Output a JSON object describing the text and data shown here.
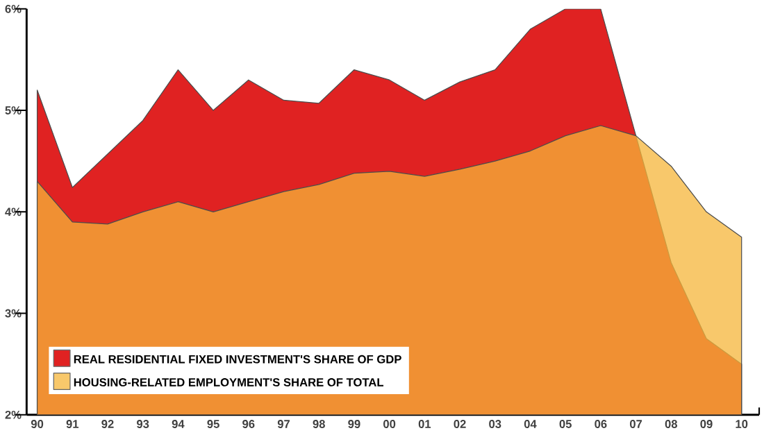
{
  "chart_data": {
    "type": "area",
    "categories": [
      "90",
      "91",
      "92",
      "93",
      "94",
      "95",
      "96",
      "97",
      "98",
      "99",
      "00",
      "01",
      "02",
      "03",
      "04",
      "05",
      "06",
      "07",
      "08",
      "09",
      "10"
    ],
    "series": [
      {
        "name": "REAL RESIDENTIAL FIXED INVESTMENT'S SHARE OF GDP",
        "color": "#e02222",
        "values": [
          5.2,
          4.24,
          4.57,
          4.9,
          5.4,
          5.0,
          5.3,
          5.1,
          5.07,
          5.4,
          5.3,
          5.1,
          5.28,
          5.4,
          5.8,
          6.0,
          6.0,
          4.75,
          3.5,
          2.75,
          2.5
        ]
      },
      {
        "name": "HOUSING-RELATED EMPLOYMENT'S SHARE OF TOTAL",
        "color": "#f5b53a",
        "values": [
          4.3,
          3.9,
          3.88,
          4.0,
          4.1,
          4.0,
          4.1,
          4.2,
          4.27,
          4.38,
          4.4,
          4.35,
          4.42,
          4.5,
          4.6,
          4.75,
          4.85,
          4.75,
          4.45,
          4.0,
          3.75
        ]
      }
    ],
    "ylim": [
      2,
      6
    ],
    "yticks": [
      {
        "value": 2,
        "label": "2%"
      },
      {
        "value": 3,
        "label": "3%"
      },
      {
        "value": 4,
        "label": "4%"
      },
      {
        "value": 5,
        "label": "5%"
      },
      {
        "value": 6,
        "label": "6%"
      }
    ],
    "legend": "bottom left"
  }
}
